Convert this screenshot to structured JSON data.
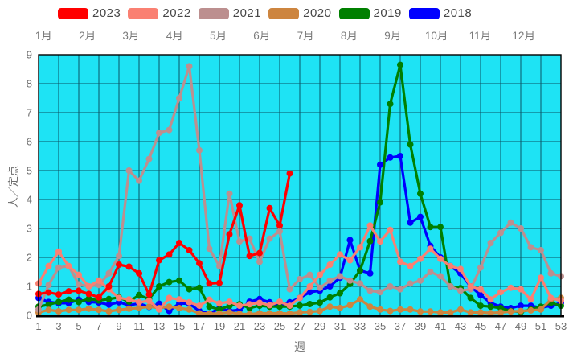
{
  "legend": {
    "items": [
      {
        "label": "2023",
        "color": "#ff0000"
      },
      {
        "label": "2022",
        "color": "#fa8072"
      },
      {
        "label": "2021",
        "color": "#bc8f8f"
      },
      {
        "label": "2020",
        "color": "#cd853f"
      },
      {
        "label": "2019",
        "color": "#008000"
      },
      {
        "label": "2018",
        "color": "#0000ff"
      }
    ]
  },
  "x_axis": {
    "title": "週",
    "ticks": [
      "1",
      "3",
      "5",
      "7",
      "9",
      "11",
      "13",
      "15",
      "17",
      "19",
      "21",
      "23",
      "25",
      "27",
      "29",
      "31",
      "33",
      "35",
      "37",
      "39",
      "41",
      "43",
      "45",
      "47",
      "49",
      "51",
      "53"
    ],
    "months": [
      "1月",
      "2月",
      "3月",
      "4月",
      "5月",
      "6月",
      "7月",
      "8月",
      "9月",
      "10月",
      "11月",
      "12月"
    ]
  },
  "y_axis": {
    "title": "人／定点",
    "ticks": [
      "0",
      "1",
      "2",
      "3",
      "4",
      "5",
      "6",
      "7",
      "8",
      "9"
    ]
  },
  "colors": {
    "plot_bg": "#1ee3f4",
    "grid": "#0b5566",
    "axis": "#000000",
    "tick_text": "#6f6f6f",
    "month_text": "#7a7a7a"
  },
  "chart_data": {
    "type": "line",
    "xlabel": "週",
    "ylabel": "人／定点",
    "xlim": [
      1,
      53
    ],
    "ylim": [
      0,
      9
    ],
    "grid": true,
    "legend_position": "top",
    "x": "weeks 1..53",
    "series": [
      {
        "name": "2023",
        "color": "#ff0000",
        "values": [
          0.74,
          0.79,
          0.72,
          0.83,
          0.85,
          0.74,
          0.62,
          1.0,
          1.75,
          1.68,
          1.45,
          0.72,
          1.9,
          2.1,
          2.5,
          2.25,
          1.8,
          1.1,
          1.12,
          2.8,
          3.8,
          2.05,
          2.15,
          3.7,
          3.1,
          4.9
        ]
      },
      {
        "name": "2022",
        "color": "#fa8072",
        "values": [
          1.1,
          1.7,
          2.2,
          1.7,
          1.4,
          1.0,
          1.2,
          0.9,
          0.6,
          0.55,
          0.45,
          0.5,
          0.2,
          0.6,
          0.55,
          0.45,
          0.33,
          0.54,
          0.41,
          0.47,
          0.33,
          0.38,
          0.43,
          0.35,
          0.47,
          0.33,
          0.6,
          1.0,
          1.4,
          1.75,
          2.1,
          1.9,
          2.35,
          3.1,
          2.55,
          2.95,
          1.85,
          1.7,
          1.95,
          2.3,
          1.95,
          1.7,
          1.6,
          1.0,
          0.9,
          0.55,
          0.8,
          0.95,
          0.9,
          0.55,
          1.3,
          0.6,
          0.5
        ]
      },
      {
        "name": "2021",
        "color": "#bc8f8f",
        "values": [
          0.2,
          1.05,
          1.65,
          1.7,
          1.07,
          1.0,
          1.05,
          1.45,
          2.05,
          5.0,
          4.65,
          5.4,
          6.3,
          6.4,
          7.5,
          8.6,
          5.7,
          2.3,
          1.7,
          4.2,
          2.55,
          2.65,
          1.85,
          2.65,
          2.9,
          0.9,
          1.25,
          1.4,
          0.95,
          1.2,
          1.35,
          1.2,
          1.1,
          0.85,
          0.8,
          1.0,
          0.9,
          1.1,
          1.2,
          1.5,
          1.35,
          1.0,
          0.85,
          0.9,
          1.65,
          2.5,
          2.85,
          3.2,
          3.0,
          2.35,
          2.25,
          1.45,
          1.35
        ]
      },
      {
        "name": "2020",
        "color": "#cd853f",
        "values": [
          0.1,
          0.19,
          0.14,
          0.19,
          0.19,
          0.23,
          0.19,
          0.14,
          0.19,
          0.23,
          0.25,
          0.3,
          0.25,
          0.3,
          0.25,
          0.2,
          0.07,
          0.06,
          0.06,
          0.1,
          0.05,
          0.04,
          0.07,
          0.07,
          0.07,
          0.06,
          0.1,
          0.12,
          0.15,
          0.3,
          0.25,
          0.35,
          0.55,
          0.3,
          0.2,
          0.15,
          0.2,
          0.2,
          0.13,
          0.13,
          0.1,
          0.1,
          0.2,
          0.1,
          0.1,
          0.08,
          0.1,
          0.13,
          0.15,
          0.17,
          0.2,
          0.55,
          0.6
        ]
      },
      {
        "name": "2019",
        "color": "#008000",
        "values": [
          0.3,
          0.37,
          0.46,
          0.54,
          0.46,
          0.57,
          0.51,
          0.56,
          0.62,
          0.47,
          0.7,
          0.56,
          1.0,
          1.15,
          1.2,
          0.9,
          0.95,
          0.3,
          0.2,
          0.33,
          0.38,
          0.25,
          0.33,
          0.3,
          0.3,
          0.3,
          0.34,
          0.39,
          0.44,
          0.62,
          0.76,
          1.08,
          1.55,
          2.56,
          3.9,
          7.3,
          8.65,
          5.9,
          4.2,
          3.05,
          3.05,
          1.0,
          0.94,
          0.6,
          0.33,
          0.3,
          0.25,
          0.15,
          0.12,
          0.2,
          0.3,
          0.43,
          0.33
        ]
      },
      {
        "name": "2018",
        "color": "#0000ff",
        "values": [
          0.6,
          0.46,
          0.42,
          0.42,
          0.54,
          0.46,
          0.44,
          0.37,
          0.45,
          0.35,
          0.41,
          0.29,
          0.4,
          0.15,
          0.41,
          0.4,
          0.15,
          0.06,
          0.24,
          0.15,
          0.19,
          0.47,
          0.56,
          0.45,
          0.33,
          0.45,
          0.6,
          0.8,
          0.85,
          1.0,
          1.3,
          2.6,
          1.55,
          1.45,
          5.2,
          5.45,
          5.5,
          3.2,
          3.4,
          2.4,
          2.0,
          1.7,
          1.45,
          1.0,
          0.7,
          0.43,
          0.3,
          0.25,
          0.33,
          0.33,
          0.26,
          0.33,
          0.43
        ]
      }
    ]
  }
}
